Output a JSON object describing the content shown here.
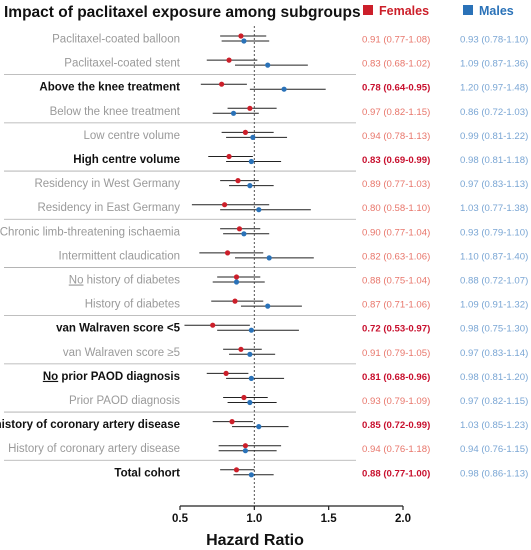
{
  "chart_data": {
    "type": "forest",
    "title": "Impact of paclitaxel exposure among subgroups",
    "xlabel": "Hazard Ratio",
    "xlim": [
      0.5,
      2.0
    ],
    "xticks": [
      "0.5",
      "1.0",
      "1.5",
      "2.0"
    ],
    "reference_line": 1.0,
    "legend_position": "top-right",
    "colors": {
      "females": "#cc1f2a",
      "males": "#2a72b8",
      "female_text": "#e8766b",
      "male_text": "#7aa6d4",
      "label_gray": "#9a9a9a",
      "label_dark": "#111111",
      "female_text_bold": "#c8102e",
      "male_text_bold": "#6f98c8"
    },
    "series": [
      {
        "name": "Females",
        "color": "#cc1f2a"
      },
      {
        "name": "Males",
        "color": "#2a72b8"
      }
    ],
    "rows": [
      {
        "label": "Paclitaxel-coated balloon",
        "bold": false,
        "females": {
          "hr": 0.91,
          "lo": 0.77,
          "hi": 1.08,
          "text": "0.91 (0.77-1.08)"
        },
        "males": {
          "hr": 0.93,
          "lo": 0.78,
          "hi": 1.1,
          "text": "0.93 (0.78-1.10)"
        }
      },
      {
        "label": "Paclitaxel-coated stent",
        "bold": false,
        "females": {
          "hr": 0.83,
          "lo": 0.68,
          "hi": 1.02,
          "text": "0.83 (0.68-1.02)"
        },
        "males": {
          "hr": 1.09,
          "lo": 0.87,
          "hi": 1.36,
          "text": "1.09 (0.87-1.36)"
        }
      },
      {
        "label": "Above the knee treatment",
        "bold": true,
        "females": {
          "hr": 0.78,
          "lo": 0.64,
          "hi": 0.95,
          "text": "0.78 (0.64-0.95)"
        },
        "males": {
          "hr": 1.2,
          "lo": 0.97,
          "hi": 1.48,
          "text": "1.20 (0.97-1.48)"
        }
      },
      {
        "label": "Below the knee treatment",
        "bold": false,
        "females": {
          "hr": 0.97,
          "lo": 0.82,
          "hi": 1.15,
          "text": "0.97 (0.82-1.15)"
        },
        "males": {
          "hr": 0.86,
          "lo": 0.72,
          "hi": 1.03,
          "text": "0.86 (0.72-1.03)"
        }
      },
      {
        "label": "Low centre volume",
        "bold": false,
        "females": {
          "hr": 0.94,
          "lo": 0.78,
          "hi": 1.13,
          "text": "0.94 (0.78-1.13)"
        },
        "males": {
          "hr": 0.99,
          "lo": 0.81,
          "hi": 1.22,
          "text": "0.99 (0.81-1.22)"
        }
      },
      {
        "label": "High centre volume",
        "bold": true,
        "females": {
          "hr": 0.83,
          "lo": 0.69,
          "hi": 0.99,
          "text": "0.83 (0.69-0.99)"
        },
        "males": {
          "hr": 0.98,
          "lo": 0.81,
          "hi": 1.18,
          "text": "0.98 (0.81-1.18)"
        }
      },
      {
        "label": "Residency in West Germany",
        "bold": false,
        "females": {
          "hr": 0.89,
          "lo": 0.77,
          "hi": 1.03,
          "text": "0.89 (0.77-1.03)"
        },
        "males": {
          "hr": 0.97,
          "lo": 0.83,
          "hi": 1.13,
          "text": "0.97 (0.83-1.13)"
        }
      },
      {
        "label": "Residency in East Germany",
        "bold": false,
        "females": {
          "hr": 0.8,
          "lo": 0.58,
          "hi": 1.1,
          "text": "0.80 (0.58-1.10)"
        },
        "males": {
          "hr": 1.03,
          "lo": 0.77,
          "hi": 1.38,
          "text": "1.03 (0.77-1.38)"
        }
      },
      {
        "label": "Chronic limb-threatening ischaemia",
        "bold": false,
        "females": {
          "hr": 0.9,
          "lo": 0.77,
          "hi": 1.04,
          "text": "0.90 (0.77-1.04)"
        },
        "males": {
          "hr": 0.93,
          "lo": 0.79,
          "hi": 1.1,
          "text": "0.93 (0.79-1.10)"
        }
      },
      {
        "label": "Intermittent claudication",
        "bold": false,
        "females": {
          "hr": 0.82,
          "lo": 0.63,
          "hi": 1.06,
          "text": "0.82 (0.63-1.06)"
        },
        "males": {
          "hr": 1.1,
          "lo": 0.87,
          "hi": 1.4,
          "text": "1.10 (0.87-1.40)"
        }
      },
      {
        "label": "No history of diabetes",
        "label_underline": "No",
        "label_rest": " history of diabetes",
        "bold": false,
        "females": {
          "hr": 0.88,
          "lo": 0.75,
          "hi": 1.04,
          "text": "0.88 (0.75-1.04)"
        },
        "males": {
          "hr": 0.88,
          "lo": 0.72,
          "hi": 1.07,
          "text": "0.88 (0.72-1.07)"
        }
      },
      {
        "label": "History of diabetes",
        "bold": false,
        "females": {
          "hr": 0.87,
          "lo": 0.71,
          "hi": 1.06,
          "text": "0.87 (0.71-1.06)"
        },
        "males": {
          "hr": 1.09,
          "lo": 0.91,
          "hi": 1.32,
          "text": "1.09 (0.91-1.32)"
        }
      },
      {
        "label": "van Walraven score <5",
        "bold": true,
        "females": {
          "hr": 0.72,
          "lo": 0.53,
          "hi": 0.97,
          "text": "0.72 (0.53-0.97)"
        },
        "males": {
          "hr": 0.98,
          "lo": 0.75,
          "hi": 1.3,
          "text": "0.98 (0.75-1.30)"
        }
      },
      {
        "label": "van Walraven score ≥5",
        "bold": false,
        "females": {
          "hr": 0.91,
          "lo": 0.79,
          "hi": 1.05,
          "text": "0.91 (0.79-1.05)"
        },
        "males": {
          "hr": 0.97,
          "lo": 0.83,
          "hi": 1.14,
          "text": "0.97 (0.83-1.14)"
        }
      },
      {
        "label": "No prior PAOD diagnosis",
        "label_underline": "No",
        "label_rest": " prior PAOD diagnosis",
        "bold": true,
        "females": {
          "hr": 0.81,
          "lo": 0.68,
          "hi": 0.96,
          "text": "0.81 (0.68-0.96)"
        },
        "males": {
          "hr": 0.98,
          "lo": 0.81,
          "hi": 1.2,
          "text": "0.98 (0.81-1.20)"
        }
      },
      {
        "label": "Prior PAOD diagnosis",
        "bold": false,
        "females": {
          "hr": 0.93,
          "lo": 0.79,
          "hi": 1.09,
          "text": "0.93 (0.79-1.09)"
        },
        "males": {
          "hr": 0.97,
          "lo": 0.82,
          "hi": 1.15,
          "text": "0.97 (0.82-1.15)"
        }
      },
      {
        "label": "No history of coronary artery disease",
        "label_underline": "No",
        "label_rest": " history of coronary artery disease",
        "bold": true,
        "females": {
          "hr": 0.85,
          "lo": 0.72,
          "hi": 0.99,
          "text": "0.85 (0.72-0.99)"
        },
        "males": {
          "hr": 1.03,
          "lo": 0.85,
          "hi": 1.23,
          "text": "1.03 (0.85-1.23)"
        }
      },
      {
        "label": "History of coronary artery disease",
        "bold": false,
        "females": {
          "hr": 0.94,
          "lo": 0.76,
          "hi": 1.18,
          "text": "0.94 (0.76-1.18)"
        },
        "males": {
          "hr": 0.94,
          "lo": 0.76,
          "hi": 1.15,
          "text": "0.94 (0.76-1.15)"
        }
      },
      {
        "label": "Total cohort",
        "bold": true,
        "females": {
          "hr": 0.88,
          "lo": 0.77,
          "hi": 1.0,
          "text": "0.88 (0.77-1.00)"
        },
        "males": {
          "hr": 0.98,
          "lo": 0.86,
          "hi": 1.13,
          "text": "0.98 (0.86-1.13)"
        }
      }
    ],
    "group_dividers_after_rows": [
      1,
      3,
      5,
      7,
      9,
      11,
      13,
      15,
      17
    ]
  }
}
